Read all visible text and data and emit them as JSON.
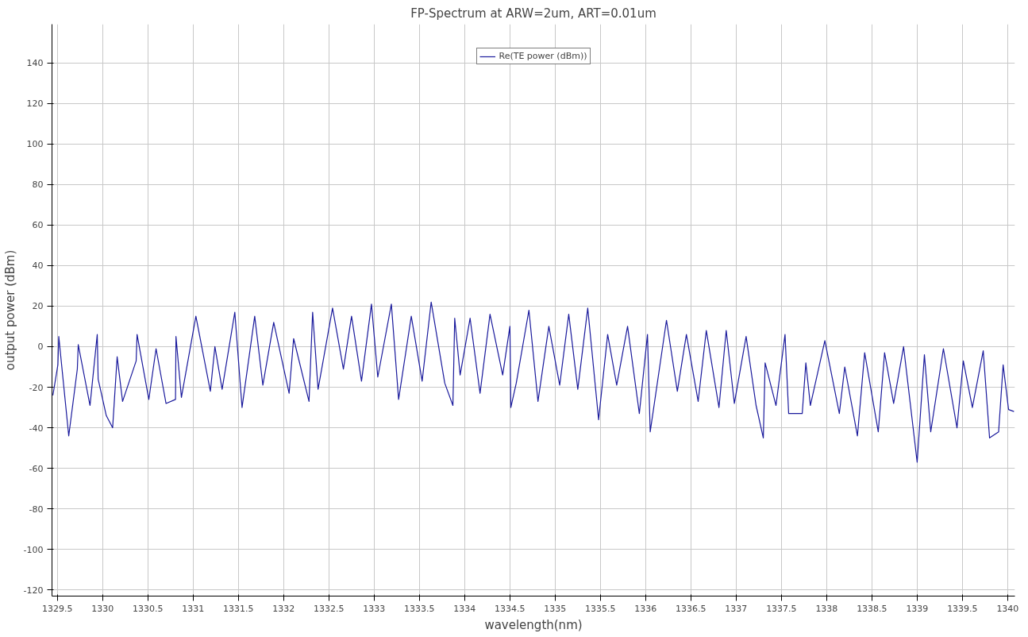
{
  "chart_data": {
    "type": "line",
    "title": "FP-Spectrum at ARW=2um, ART=0.01um",
    "xlabel": "wavelength(nm)",
    "ylabel": "output power (dBm)",
    "x": [
      1329.45,
      1329.505,
      1329.515,
      1329.625,
      1329.72,
      1329.73,
      1329.86,
      1329.94,
      1329.95,
      1330.04,
      1330.11,
      1330.16,
      1330.22,
      1330.37,
      1330.38,
      1330.51,
      1330.59,
      1330.7,
      1330.805,
      1330.81,
      1330.87,
      1331.03,
      1331.19,
      1331.24,
      1331.32,
      1331.46,
      1331.54,
      1331.68,
      1331.77,
      1331.89,
      1332.06,
      1332.11,
      1332.28,
      1332.32,
      1332.38,
      1332.54,
      1332.66,
      1332.75,
      1332.86,
      1332.97,
      1333.04,
      1333.19,
      1333.27,
      1333.41,
      1333.53,
      1333.63,
      1333.78,
      1333.87,
      1333.89,
      1333.95,
      1334.06,
      1334.17,
      1334.28,
      1334.42,
      1334.5,
      1334.51,
      1334.57,
      1334.71,
      1334.81,
      1334.93,
      1335.05,
      1335.15,
      1335.25,
      1335.36,
      1335.48,
      1335.58,
      1335.68,
      1335.8,
      1335.93,
      1336.02,
      1336.05,
      1336.23,
      1336.35,
      1336.45,
      1336.58,
      1336.67,
      1336.81,
      1336.89,
      1336.98,
      1337.11,
      1337.22,
      1337.3,
      1337.32,
      1337.44,
      1337.54,
      1337.58,
      1337.73,
      1337.77,
      1337.82,
      1337.98,
      1338.14,
      1338.2,
      1338.34,
      1338.42,
      1338.57,
      1338.64,
      1338.74,
      1338.85,
      1339.0,
      1339.08,
      1339.15,
      1339.29,
      1339.44,
      1339.51,
      1339.61,
      1339.73,
      1339.8,
      1339.9,
      1339.95,
      1340.01,
      1340.07
    ],
    "series": [
      {
        "name": "Re(TE power (dBm))",
        "color": "#1a1a9c",
        "values": [
          -24,
          -9,
          5,
          -44,
          -11,
          1,
          -29,
          6,
          -16,
          -34,
          -40,
          -5,
          -27,
          -7,
          6,
          -26,
          -1,
          -28,
          -26,
          5,
          -25,
          15,
          -22,
          0,
          -21,
          17,
          -30,
          15,
          -19,
          12,
          -23,
          4,
          -27,
          17,
          -21,
          19,
          -11,
          15,
          -17,
          21,
          -15,
          21,
          -26,
          15,
          -17,
          22,
          -18,
          -29,
          14,
          -14,
          14,
          -23,
          16,
          -14,
          10,
          -30,
          -18,
          18,
          -27,
          10,
          -19,
          16,
          -21,
          19,
          -36,
          6,
          -19,
          10,
          -33,
          6,
          -42,
          13,
          -22,
          6,
          -27,
          8,
          -30,
          8,
          -28,
          5,
          -29,
          -45,
          -8,
          -29,
          6,
          -33,
          -33,
          -8,
          -29,
          3,
          -33,
          -10,
          -44,
          -3,
          -42,
          -3,
          -28,
          0,
          -57,
          -4,
          -42,
          -1,
          -40,
          -7,
          -30,
          -2,
          -45,
          -42,
          -9,
          -31,
          -32
        ]
      }
    ],
    "xlim": [
      1329.44,
      1340.08
    ],
    "ylim": [
      -123,
      159
    ],
    "xticks": [
      1329.5,
      1330,
      1330.5,
      1331,
      1331.5,
      1332,
      1332.5,
      1333,
      1333.5,
      1334,
      1334.5,
      1335,
      1335.5,
      1336,
      1336.5,
      1337,
      1337.5,
      1338,
      1338.5,
      1339,
      1339.5,
      1340
    ],
    "yticks": [
      -120,
      -100,
      -80,
      -60,
      -40,
      -20,
      0,
      20,
      40,
      60,
      80,
      100,
      120,
      140
    ],
    "grid": true,
    "legend": "top",
    "marker": "none",
    "line_style": "solid"
  }
}
